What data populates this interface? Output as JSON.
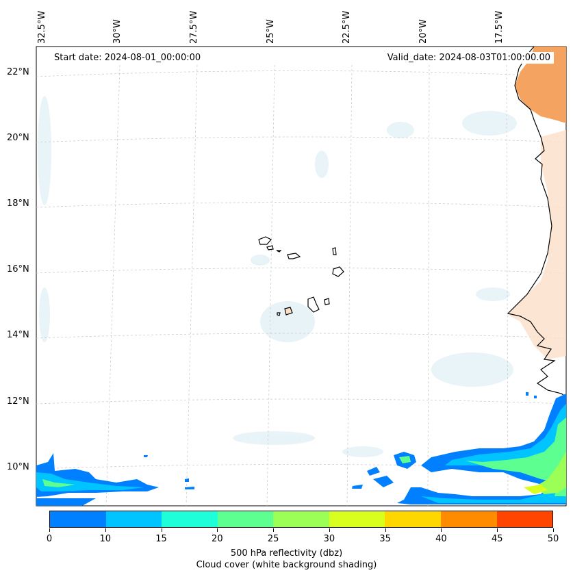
{
  "map": {
    "start_date": "Start date: 2024-08-01_00:00:00",
    "valid_date": "Valid_date: 2024-08-03T01:00:00.00",
    "lat_labels": [
      "22°N",
      "20°N",
      "18°N",
      "16°N",
      "14°N",
      "12°N",
      "10°N"
    ],
    "lon_labels": [
      "32.5°W",
      "30°W",
      "27.5°W",
      "25°W",
      "22.5°W",
      "20°W",
      "17.5°W"
    ],
    "land_color": "#f4a460",
    "coastline_color": "#000000",
    "gridline_color": "#cccccc"
  },
  "colorbar": {
    "ticks": [
      "0",
      "10",
      "15",
      "20",
      "25",
      "30",
      "35",
      "40",
      "45",
      "50"
    ],
    "colors": [
      "#0080ff",
      "#00c4ff",
      "#1effd9",
      "#5cff90",
      "#9cff55",
      "#d8ff1e",
      "#ffd700",
      "#ff8c00",
      "#ff4500"
    ],
    "label": "500 hPa reflectivity (dbz)",
    "sublabel": "Cloud cover (white background shading)"
  }
}
